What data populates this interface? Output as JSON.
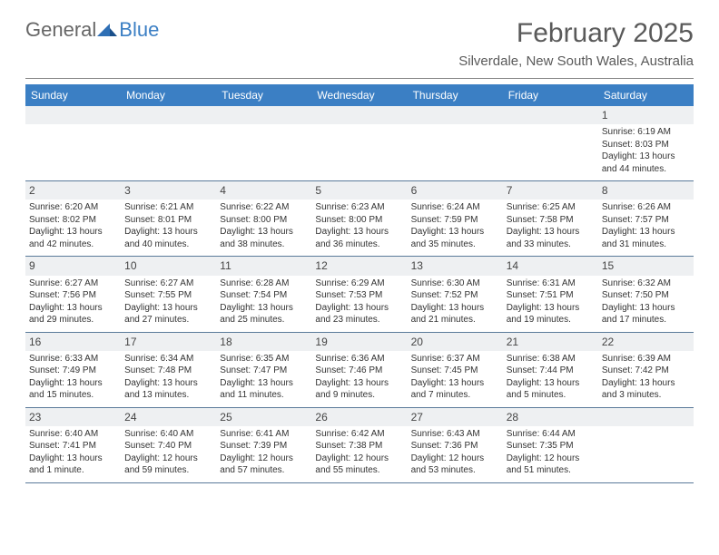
{
  "brand": {
    "part1": "General",
    "part2": "Blue"
  },
  "title": "February 2025",
  "location": "Silverdale, New South Wales, Australia",
  "colors": {
    "header_bar": "#3b7fc4",
    "daynum_bg": "#eef0f2",
    "rule": "#5a7a9a",
    "text": "#333333",
    "title_text": "#5a5a5a"
  },
  "dayNames": [
    "Sunday",
    "Monday",
    "Tuesday",
    "Wednesday",
    "Thursday",
    "Friday",
    "Saturday"
  ],
  "weeks": [
    [
      {
        "n": "",
        "sr": "",
        "ss": "",
        "dl": ""
      },
      {
        "n": "",
        "sr": "",
        "ss": "",
        "dl": ""
      },
      {
        "n": "",
        "sr": "",
        "ss": "",
        "dl": ""
      },
      {
        "n": "",
        "sr": "",
        "ss": "",
        "dl": ""
      },
      {
        "n": "",
        "sr": "",
        "ss": "",
        "dl": ""
      },
      {
        "n": "",
        "sr": "",
        "ss": "",
        "dl": ""
      },
      {
        "n": "1",
        "sr": "Sunrise: 6:19 AM",
        "ss": "Sunset: 8:03 PM",
        "dl": "Daylight: 13 hours and 44 minutes."
      }
    ],
    [
      {
        "n": "2",
        "sr": "Sunrise: 6:20 AM",
        "ss": "Sunset: 8:02 PM",
        "dl": "Daylight: 13 hours and 42 minutes."
      },
      {
        "n": "3",
        "sr": "Sunrise: 6:21 AM",
        "ss": "Sunset: 8:01 PM",
        "dl": "Daylight: 13 hours and 40 minutes."
      },
      {
        "n": "4",
        "sr": "Sunrise: 6:22 AM",
        "ss": "Sunset: 8:00 PM",
        "dl": "Daylight: 13 hours and 38 minutes."
      },
      {
        "n": "5",
        "sr": "Sunrise: 6:23 AM",
        "ss": "Sunset: 8:00 PM",
        "dl": "Daylight: 13 hours and 36 minutes."
      },
      {
        "n": "6",
        "sr": "Sunrise: 6:24 AM",
        "ss": "Sunset: 7:59 PM",
        "dl": "Daylight: 13 hours and 35 minutes."
      },
      {
        "n": "7",
        "sr": "Sunrise: 6:25 AM",
        "ss": "Sunset: 7:58 PM",
        "dl": "Daylight: 13 hours and 33 minutes."
      },
      {
        "n": "8",
        "sr": "Sunrise: 6:26 AM",
        "ss": "Sunset: 7:57 PM",
        "dl": "Daylight: 13 hours and 31 minutes."
      }
    ],
    [
      {
        "n": "9",
        "sr": "Sunrise: 6:27 AM",
        "ss": "Sunset: 7:56 PM",
        "dl": "Daylight: 13 hours and 29 minutes."
      },
      {
        "n": "10",
        "sr": "Sunrise: 6:27 AM",
        "ss": "Sunset: 7:55 PM",
        "dl": "Daylight: 13 hours and 27 minutes."
      },
      {
        "n": "11",
        "sr": "Sunrise: 6:28 AM",
        "ss": "Sunset: 7:54 PM",
        "dl": "Daylight: 13 hours and 25 minutes."
      },
      {
        "n": "12",
        "sr": "Sunrise: 6:29 AM",
        "ss": "Sunset: 7:53 PM",
        "dl": "Daylight: 13 hours and 23 minutes."
      },
      {
        "n": "13",
        "sr": "Sunrise: 6:30 AM",
        "ss": "Sunset: 7:52 PM",
        "dl": "Daylight: 13 hours and 21 minutes."
      },
      {
        "n": "14",
        "sr": "Sunrise: 6:31 AM",
        "ss": "Sunset: 7:51 PM",
        "dl": "Daylight: 13 hours and 19 minutes."
      },
      {
        "n": "15",
        "sr": "Sunrise: 6:32 AM",
        "ss": "Sunset: 7:50 PM",
        "dl": "Daylight: 13 hours and 17 minutes."
      }
    ],
    [
      {
        "n": "16",
        "sr": "Sunrise: 6:33 AM",
        "ss": "Sunset: 7:49 PM",
        "dl": "Daylight: 13 hours and 15 minutes."
      },
      {
        "n": "17",
        "sr": "Sunrise: 6:34 AM",
        "ss": "Sunset: 7:48 PM",
        "dl": "Daylight: 13 hours and 13 minutes."
      },
      {
        "n": "18",
        "sr": "Sunrise: 6:35 AM",
        "ss": "Sunset: 7:47 PM",
        "dl": "Daylight: 13 hours and 11 minutes."
      },
      {
        "n": "19",
        "sr": "Sunrise: 6:36 AM",
        "ss": "Sunset: 7:46 PM",
        "dl": "Daylight: 13 hours and 9 minutes."
      },
      {
        "n": "20",
        "sr": "Sunrise: 6:37 AM",
        "ss": "Sunset: 7:45 PM",
        "dl": "Daylight: 13 hours and 7 minutes."
      },
      {
        "n": "21",
        "sr": "Sunrise: 6:38 AM",
        "ss": "Sunset: 7:44 PM",
        "dl": "Daylight: 13 hours and 5 minutes."
      },
      {
        "n": "22",
        "sr": "Sunrise: 6:39 AM",
        "ss": "Sunset: 7:42 PM",
        "dl": "Daylight: 13 hours and 3 minutes."
      }
    ],
    [
      {
        "n": "23",
        "sr": "Sunrise: 6:40 AM",
        "ss": "Sunset: 7:41 PM",
        "dl": "Daylight: 13 hours and 1 minute."
      },
      {
        "n": "24",
        "sr": "Sunrise: 6:40 AM",
        "ss": "Sunset: 7:40 PM",
        "dl": "Daylight: 12 hours and 59 minutes."
      },
      {
        "n": "25",
        "sr": "Sunrise: 6:41 AM",
        "ss": "Sunset: 7:39 PM",
        "dl": "Daylight: 12 hours and 57 minutes."
      },
      {
        "n": "26",
        "sr": "Sunrise: 6:42 AM",
        "ss": "Sunset: 7:38 PM",
        "dl": "Daylight: 12 hours and 55 minutes."
      },
      {
        "n": "27",
        "sr": "Sunrise: 6:43 AM",
        "ss": "Sunset: 7:36 PM",
        "dl": "Daylight: 12 hours and 53 minutes."
      },
      {
        "n": "28",
        "sr": "Sunrise: 6:44 AM",
        "ss": "Sunset: 7:35 PM",
        "dl": "Daylight: 12 hours and 51 minutes."
      },
      {
        "n": "",
        "sr": "",
        "ss": "",
        "dl": ""
      }
    ]
  ]
}
